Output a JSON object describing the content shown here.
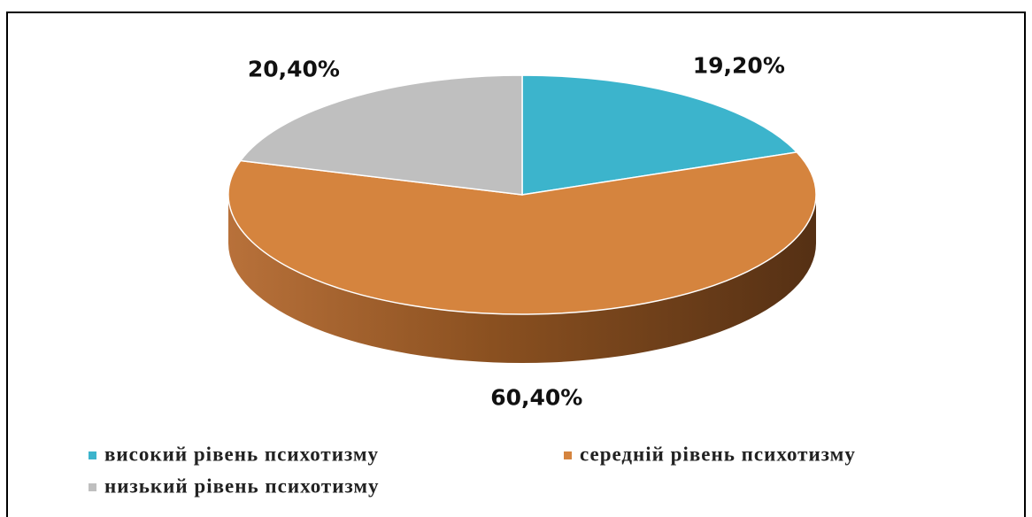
{
  "chart_data": {
    "type": "pie3d",
    "categories": [
      "високий рівень психотизму",
      "середній рівень психотизму",
      "низький рівень психотизму"
    ],
    "values": [
      19.2,
      60.4,
      20.4
    ],
    "value_labels": [
      "19,20%",
      "60,40%",
      "20,40%"
    ],
    "colors": [
      "#3cb4cc",
      "#d5843e",
      "#bfbfbf"
    ],
    "legend": "bottom"
  }
}
